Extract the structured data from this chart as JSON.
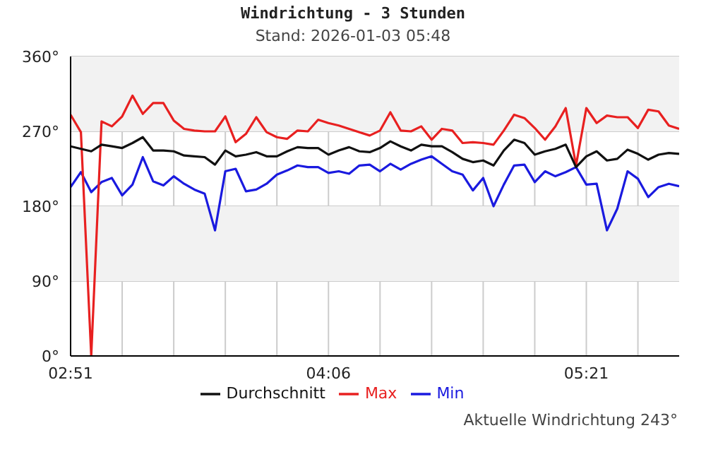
{
  "chart_data": {
    "type": "line",
    "title": "Windrichtung - 3 Stunden",
    "subtitle": "Stand: 2026-01-03 05:48",
    "x": [
      2.85,
      2.9,
      2.95,
      3.0,
      3.05,
      3.1,
      3.15,
      3.2,
      3.25,
      3.3,
      3.35,
      3.4,
      3.45,
      3.5,
      3.55,
      3.6,
      3.65,
      3.7,
      3.75,
      3.8,
      3.85,
      3.9,
      3.95,
      4.0,
      4.05,
      4.1,
      4.15,
      4.2,
      4.25,
      4.3,
      4.35,
      4.4,
      4.45,
      4.5,
      4.55,
      4.6,
      4.65,
      4.7,
      4.75,
      4.8,
      4.85,
      4.9,
      4.95,
      5.0,
      5.05,
      5.1,
      5.15,
      5.2,
      5.25,
      5.3,
      5.35,
      5.4,
      5.45,
      5.5,
      5.55,
      5.6,
      5.65,
      5.7,
      5.75,
      5.8
    ],
    "xlim": [
      2.85,
      5.8
    ],
    "xticks": [
      {
        "value": 2.85,
        "label": "02:51"
      },
      {
        "value": 3.1,
        "label": null
      },
      {
        "value": 3.35,
        "label": null
      },
      {
        "value": 3.6,
        "label": null
      },
      {
        "value": 3.85,
        "label": null
      },
      {
        "value": 4.1,
        "label": "04:06"
      },
      {
        "value": 4.35,
        "label": null
      },
      {
        "value": 4.6,
        "label": null
      },
      {
        "value": 4.85,
        "label": null
      },
      {
        "value": 5.1,
        "label": null
      },
      {
        "value": 5.35,
        "label": "05:21"
      },
      {
        "value": 5.6,
        "label": null
      }
    ],
    "ylim": [
      0,
      360
    ],
    "yticks": [
      {
        "value": 0,
        "label": "0°"
      },
      {
        "value": 90,
        "label": "90°"
      },
      {
        "value": 180,
        "label": "180°"
      },
      {
        "value": 270,
        "label": "270°"
      },
      {
        "value": 360,
        "label": "360°"
      }
    ],
    "series": [
      {
        "name": "Min",
        "color": "#1a1adf",
        "values": [
          203,
          221,
          197,
          209,
          214,
          193,
          206,
          239,
          210,
          205,
          216,
          207,
          200,
          195,
          151,
          222,
          225,
          198,
          200,
          207,
          218,
          223,
          229,
          227,
          227,
          220,
          222,
          219,
          229,
          230,
          222,
          231,
          224,
          231,
          236,
          240,
          231,
          222,
          218,
          199,
          214,
          180,
          206,
          229,
          230,
          209,
          222,
          216,
          221,
          227,
          206,
          207,
          151,
          177,
          222,
          213,
          191,
          203,
          207,
          204
        ]
      },
      {
        "name": "Max",
        "color": "#e82020",
        "values": [
          290,
          269,
          0,
          282,
          276,
          288,
          313,
          291,
          304,
          304,
          283,
          273,
          271,
          270,
          270,
          288,
          257,
          267,
          287,
          269,
          263,
          261,
          271,
          270,
          284,
          280,
          277,
          273,
          269,
          265,
          271,
          293,
          271,
          270,
          276,
          260,
          273,
          271,
          256,
          257,
          256,
          254,
          271,
          290,
          286,
          274,
          260,
          276,
          298,
          229,
          298,
          280,
          289,
          287,
          287,
          274,
          296,
          294,
          277,
          273
        ]
      },
      {
        "name": "Durchschnitt",
        "color": "#111111",
        "values": [
          252,
          249,
          246,
          254,
          252,
          250,
          256,
          263,
          247,
          247,
          246,
          241,
          240,
          239,
          230,
          247,
          240,
          242,
          245,
          240,
          240,
          246,
          251,
          250,
          250,
          242,
          247,
          251,
          246,
          245,
          250,
          258,
          252,
          247,
          254,
          252,
          252,
          245,
          237,
          233,
          235,
          229,
          247,
          260,
          256,
          242,
          246,
          249,
          254,
          227,
          240,
          246,
          235,
          237,
          248,
          243,
          236,
          242,
          244,
          243
        ]
      }
    ],
    "bands": [
      {
        "axis": "y",
        "from": 270,
        "to": 360,
        "color": "#f2f2f2"
      },
      {
        "axis": "y",
        "from": 90,
        "to": 180,
        "color": "#f2f2f2"
      }
    ],
    "grid": true,
    "legend": "bottom",
    "marker": "none",
    "line_style": "solid",
    "annotations": [
      "Aktuelle Windrichtung 243°"
    ]
  }
}
